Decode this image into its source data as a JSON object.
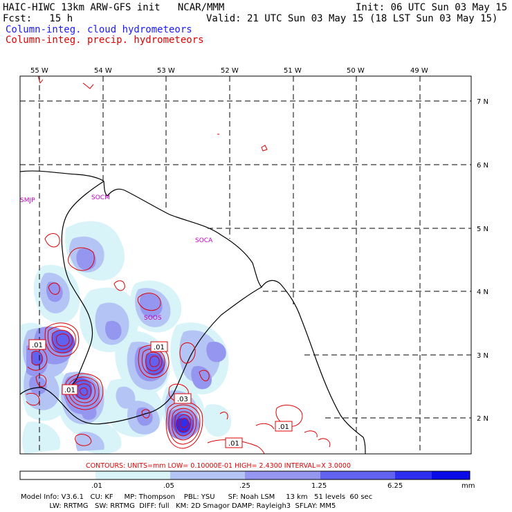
{
  "header": {
    "line1_left": "HAIC-HIWC 13km ARW-GFS init   NCAR/MMM",
    "line1_right": "Init: 06 UTC Sun 03 May 15",
    "line2_left": "Fcst:   15 h",
    "line2_right": "Valid: 21 UTC Sun 03 May 15 (18 LST Sun 03 May 15)",
    "legend_cloud": "Column-integ. cloud hydrometeors",
    "legend_precip": "Column-integ. precip. hydrometeors"
  },
  "axes": {
    "lon_labels": [
      "55 W",
      "54 W",
      "53 W",
      "52 W",
      "51 W",
      "50 W",
      "49 W"
    ],
    "lat_labels": [
      "7 N",
      "6 N",
      "5 N",
      "4 N",
      "3 N",
      "2 N"
    ]
  },
  "places": [
    "SMJP",
    "SOCM",
    "SOCA",
    "SOOS"
  ],
  "contour_labels": [
    ".01",
    ".01",
    ".01",
    ".03",
    ".01",
    ".01"
  ],
  "contour_info": "CONTOURS:  UNITS=mm  LOW= 0.10000E-01  HIGH=  2.4300     INTERVAL=X  3.0000",
  "colorbar": {
    "ticks": [
      ".01",
      ".05",
      ".25",
      "1.25",
      "6.25"
    ],
    "unit": "mm",
    "colors": [
      "#ffffff",
      "#d8f4f8",
      "#b4c4f4",
      "#9496f0",
      "#6262f0",
      "#2e2ef0",
      "#0a0ae8"
    ]
  },
  "footer": {
    "line1": "Model Info: V3.6.1   CU: KF     MP: Thompson    PBL: YSU      SF: Noah LSM     13 km   51 levels  60 sec",
    "line2": "             LW: RRTMG   SW: RRTMG  DIFF: full   KM: 2D Smagor DAMP: Rayleigh3  SFLAY: MM5"
  }
}
